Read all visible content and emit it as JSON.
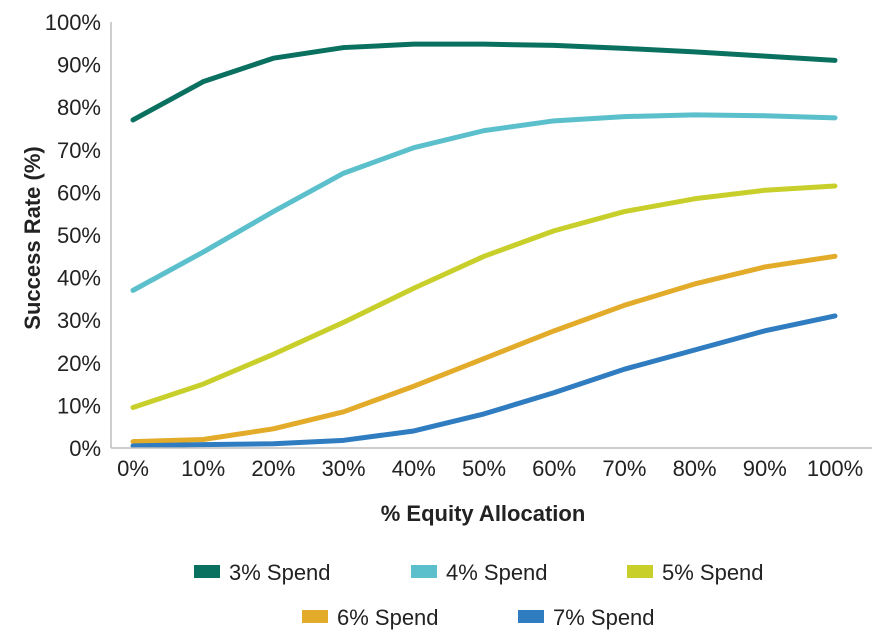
{
  "chart_data": {
    "type": "line",
    "title": "",
    "xlabel": "% Equity Allocation",
    "ylabel": "Success Rate (%)",
    "categories": [
      "0%",
      "10%",
      "20%",
      "30%",
      "40%",
      "50%",
      "60%",
      "70%",
      "80%",
      "90%",
      "100%"
    ],
    "x": [
      0,
      10,
      20,
      30,
      40,
      50,
      60,
      70,
      80,
      90,
      100
    ],
    "ylim": [
      0,
      100
    ],
    "yticks": [
      0,
      10,
      20,
      30,
      40,
      50,
      60,
      70,
      80,
      90,
      100
    ],
    "ytick_labels": [
      "0%",
      "10%",
      "20%",
      "30%",
      "40%",
      "50%",
      "60%",
      "70%",
      "80%",
      "90%",
      "100%"
    ],
    "grid": false,
    "legend_position": "bottom",
    "series": [
      {
        "name": "3% Spend",
        "color": "#0a7060",
        "values": [
          77,
          86,
          91.5,
          94,
          94.8,
          94.8,
          94.5,
          93.8,
          93,
          92,
          91
        ]
      },
      {
        "name": "4% Spend",
        "color": "#5bc0cc",
        "values": [
          37,
          46,
          55.5,
          64.5,
          70.5,
          74.5,
          76.8,
          77.8,
          78.2,
          78,
          77.5
        ]
      },
      {
        "name": "5% Spend",
        "color": "#c8cf2a",
        "values": [
          9.5,
          15,
          22,
          29.5,
          37.5,
          45,
          51,
          55.5,
          58.5,
          60.5,
          61.5
        ]
      },
      {
        "name": "6% Spend",
        "color": "#e3ab2a",
        "values": [
          1.5,
          2,
          4.5,
          8.5,
          14.5,
          21,
          27.5,
          33.5,
          38.5,
          42.5,
          45
        ]
      },
      {
        "name": "7% Spend",
        "color": "#2f7dc0",
        "values": [
          0.5,
          0.8,
          1,
          1.8,
          4,
          8,
          13,
          18.5,
          23,
          27.5,
          31
        ]
      }
    ]
  }
}
